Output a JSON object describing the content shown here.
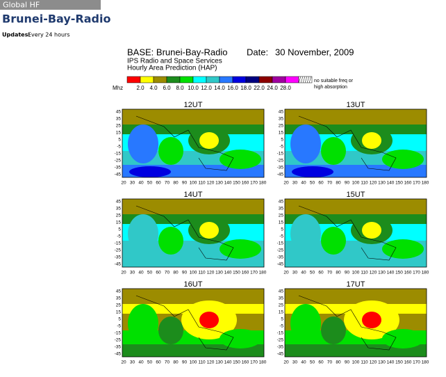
{
  "header": {
    "section": "Global HF",
    "title": "Brunei-Bay-Radio",
    "updates_label": "Updates:",
    "updates_value": "Every 24 hours"
  },
  "figure": {
    "base": "BASE: Brunei-Bay-Radio",
    "date_label": "Date:",
    "date": "30 November, 2009",
    "org_lines": [
      "IPS Radio and Space Services",
      "Hourly Area Prediction (HAP)"
    ],
    "legend": {
      "unit": "Mhz",
      "labels": [
        "2.0",
        "4.0",
        "6.0",
        "8.0",
        "10.0",
        "12.0",
        "14.0",
        "16.0",
        "18.0",
        "22.0",
        "24.0",
        "28.0"
      ],
      "colors": [
        "#ff0000",
        "#ffff00",
        "#9c8c00",
        "#1c8c1c",
        "#00e000",
        "#00ffff",
        "#30c8c8",
        "#2878ff",
        "#0000e0",
        "#000080",
        "#8c0000",
        "#a000a0",
        "#ff00ff"
      ],
      "no_freq": [
        "no suitable freq or",
        "high absorption"
      ]
    },
    "panels": [
      {
        "title": "12UT"
      },
      {
        "title": "13UT"
      },
      {
        "title": "14UT"
      },
      {
        "title": "15UT"
      },
      {
        "title": "16UT"
      },
      {
        "title": "17UT"
      }
    ],
    "lat_ticks": [
      "45",
      "35",
      "25",
      "15",
      "5",
      "-5",
      "-15",
      "-25",
      "-35",
      "-45"
    ],
    "lon_ticks": [
      "20",
      "30",
      "40",
      "50",
      "60",
      "70",
      "80",
      "90",
      "100",
      "110",
      "120",
      "130",
      "140",
      "150",
      "160",
      "170",
      "180"
    ]
  }
}
